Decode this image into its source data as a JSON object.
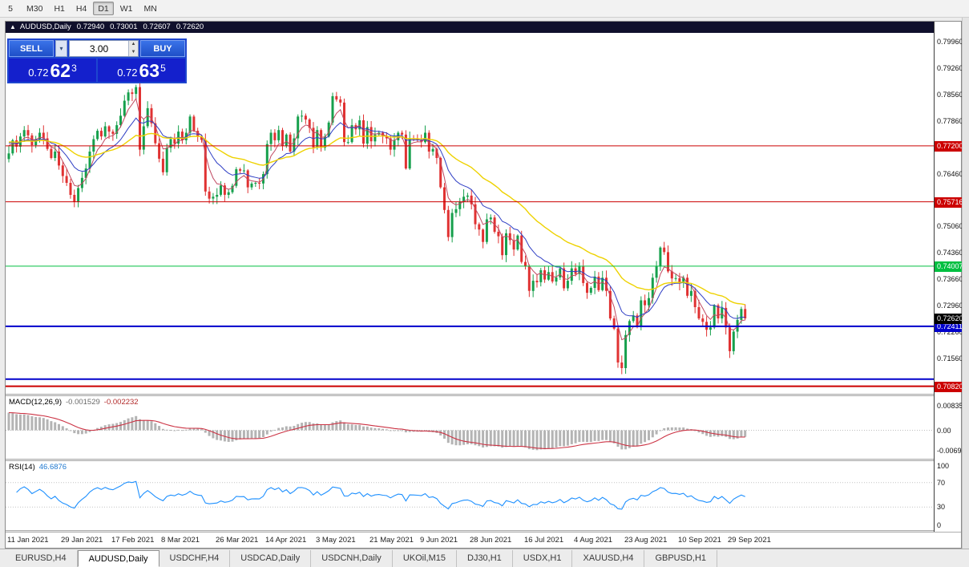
{
  "toolbar": {
    "timeframes": [
      "5",
      "M30",
      "H1",
      "H4",
      "D1",
      "W1",
      "MN"
    ],
    "active": "D1"
  },
  "window": {
    "chart_title": {
      "icon": "▲",
      "symbol": "AUDUSD,Daily",
      "open": "0.72940",
      "high": "0.73001",
      "low": "0.72607",
      "close": "0.72620"
    }
  },
  "one_click": {
    "sell_label": "SELL",
    "buy_label": "BUY",
    "volume": "3.00",
    "sell_price": {
      "base": "0.72",
      "pips": "62",
      "pipette": "3"
    },
    "buy_price": {
      "base": "0.72",
      "pips": "63",
      "pipette": "5"
    }
  },
  "chart_data": {
    "type": "candlestick",
    "symbol": "AUDUSD",
    "period": "Daily",
    "current_price": {
      "value": 0.7262,
      "label": "0.72620",
      "bg": "#000000"
    },
    "price_axis": {
      "ticks": [
        "0.79960",
        "0.79260",
        "0.78560",
        "0.77860",
        "0.76460",
        "0.75060",
        "0.74360",
        "0.73660",
        "0.72960",
        "0.72260",
        "0.71560"
      ]
    },
    "levels": [
      {
        "value": 0.772,
        "label": "0.77200",
        "color": "#cc0000",
        "width": 1
      },
      {
        "value": 0.75716,
        "label": "0.75716",
        "color": "#cc0000",
        "width": 1
      },
      {
        "value": 0.74007,
        "label": "0.74007",
        "color": "#00bf40",
        "width": 1
      },
      {
        "value": 0.72411,
        "label": "0.72411",
        "color": "#0000cc",
        "width": 2
      },
      {
        "value": 0.7101,
        "label": "",
        "color": "#0000cc",
        "width": 2
      },
      {
        "value": 0.7082,
        "label": "0.70820",
        "color": "#cc0000",
        "width": 2
      }
    ],
    "candles": {
      "first_open": 0.7685,
      "closes": [
        0.77,
        0.7735,
        0.7718,
        0.7745,
        0.7762,
        0.7748,
        0.7722,
        0.7738,
        0.7755,
        0.774,
        0.7712,
        0.7688,
        0.7705,
        0.7668,
        0.764,
        0.7622,
        0.759,
        0.7572,
        0.7608,
        0.7635,
        0.766,
        0.7705,
        0.7738,
        0.776,
        0.7745,
        0.7772,
        0.7758,
        0.7752,
        0.7775,
        0.78,
        0.784,
        0.7862,
        0.7858,
        0.7876,
        0.771,
        0.7772,
        0.782,
        0.778,
        0.7727,
        0.7686,
        0.765,
        0.7715,
        0.7738,
        0.7726,
        0.7758,
        0.7735,
        0.7755,
        0.7798,
        0.776,
        0.7744,
        0.7736,
        0.7599,
        0.758,
        0.7585,
        0.759,
        0.7615,
        0.759,
        0.7597,
        0.7614,
        0.7658,
        0.7654,
        0.7655,
        0.761,
        0.762,
        0.7622,
        0.762,
        0.7645,
        0.7725,
        0.7755,
        0.7735,
        0.7762,
        0.772,
        0.775,
        0.7705,
        0.774,
        0.7798,
        0.78,
        0.779,
        0.7768,
        0.7716,
        0.7762,
        0.7715,
        0.7745,
        0.7782,
        0.7852,
        0.7843,
        0.7835,
        0.773,
        0.773,
        0.7775,
        0.7764,
        0.7788,
        0.7726,
        0.777,
        0.7732,
        0.775,
        0.7755,
        0.7745,
        0.774,
        0.771,
        0.7735,
        0.7755,
        0.775,
        0.766,
        0.774,
        0.7738,
        0.7735,
        0.773,
        0.7755,
        0.7705,
        0.7712,
        0.7688,
        0.761,
        0.755,
        0.7478,
        0.7542,
        0.7552,
        0.7572,
        0.7585,
        0.7588,
        0.7565,
        0.7512,
        0.7498,
        0.7465,
        0.7525,
        0.753,
        0.7492,
        0.748,
        0.743,
        0.7488,
        0.747,
        0.7445,
        0.7482,
        0.7412,
        0.74,
        0.7335,
        0.7362,
        0.7358,
        0.739,
        0.7365,
        0.7385,
        0.736,
        0.7371,
        0.7395,
        0.7342,
        0.7362,
        0.7395,
        0.738,
        0.74,
        0.7356,
        0.733,
        0.7343,
        0.7373,
        0.7337,
        0.737,
        0.7335,
        0.7262,
        0.7235,
        0.7145,
        0.713,
        0.7218,
        0.7255,
        0.727,
        0.724,
        0.731,
        0.7297,
        0.7316,
        0.737,
        0.74,
        0.745,
        0.7438,
        0.7387,
        0.7368,
        0.7369,
        0.7356,
        0.737,
        0.7322,
        0.7335,
        0.7292,
        0.7262,
        0.7253,
        0.7232,
        0.7238,
        0.7297,
        0.7262,
        0.729,
        0.7238,
        0.7175,
        0.7227,
        0.7258,
        0.7287,
        0.7262
      ]
    },
    "moving_averages": [
      {
        "period": 5,
        "color": "#c04860",
        "width": 1
      },
      {
        "period": 13,
        "color": "#2e3ec4",
        "width": 1
      },
      {
        "period": 34,
        "color": "#eed202",
        "width": 1.4
      }
    ],
    "macd": {
      "name": "MACD(12,26,9)",
      "main_value": "-0.001529",
      "signal_value": "-0.002232",
      "axis_top": "0.008359",
      "axis_zero": "0.00",
      "axis_bottom": "-0.006982"
    },
    "rsi": {
      "name": "RSI(14)",
      "value": "46.6876",
      "axis": [
        "100",
        "70",
        "30",
        "0"
      ],
      "levels": [
        70,
        30
      ]
    },
    "date_axis": [
      {
        "text": "11 Jan 2021",
        "index": 0
      },
      {
        "text": "29 Jan 2021",
        "index": 14
      },
      {
        "text": "17 Feb 2021",
        "index": 27
      },
      {
        "text": "8 Mar 2021",
        "index": 40
      },
      {
        "text": "26 Mar 2021",
        "index": 54
      },
      {
        "text": "14 Apr 2021",
        "index": 67
      },
      {
        "text": "3 May 2021",
        "index": 80
      },
      {
        "text": "21 May 2021",
        "index": 94
      },
      {
        "text": "9 Jun 2021",
        "index": 107
      },
      {
        "text": "28 Jun 2021",
        "index": 120
      },
      {
        "text": "16 Jul 2021",
        "index": 134
      },
      {
        "text": "4 Aug 2021",
        "index": 147
      },
      {
        "text": "23 Aug 2021",
        "index": 160
      },
      {
        "text": "10 Sep 2021",
        "index": 174
      },
      {
        "text": "29 Sep 2021",
        "index": 187
      }
    ],
    "colors": {
      "up": "#16a04c",
      "down": "#e03232",
      "macd_hist": "#b4b4b4",
      "macd_signal": "#cc3344",
      "rsi": "#1e90ff"
    }
  },
  "tabs": {
    "items": [
      "EURUSD,H4",
      "AUDUSD,Daily",
      "USDCHF,H4",
      "USDCAD,Daily",
      "USDCNH,Daily",
      "UKOil,M15",
      "DJ30,H1",
      "USDX,H1",
      "XAUUSD,H4",
      "GBPUSD,H1"
    ],
    "active": "AUDUSD,Daily"
  }
}
